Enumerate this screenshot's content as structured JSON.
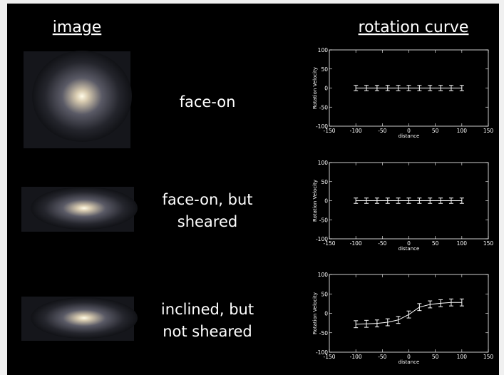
{
  "headers": {
    "image": "image",
    "curve": "rotation curve"
  },
  "rows": [
    {
      "label": [
        "face-on"
      ]
    },
    {
      "label": [
        "face-on, but",
        "sheared"
      ]
    },
    {
      "label": [
        "inclined, but",
        "not sheared"
      ]
    }
  ],
  "chart_data": [
    {
      "type": "line",
      "xlabel": "distance",
      "ylabel": "Rotation Velocity",
      "x": [
        -100,
        -80,
        -60,
        -40,
        -20,
        0,
        20,
        40,
        60,
        80,
        100
      ],
      "values": [
        0,
        0,
        0,
        0,
        0,
        0,
        0,
        0,
        0,
        0,
        0
      ],
      "errors": [
        7,
        7,
        7,
        7,
        7,
        7,
        7,
        7,
        7,
        7,
        7
      ],
      "xlim": [
        -150,
        150
      ],
      "xticks": [
        -150,
        -100,
        -50,
        0,
        50,
        100,
        150
      ],
      "ylim": [
        -100,
        100
      ],
      "yticks": [
        -100,
        -50,
        0,
        50,
        100
      ],
      "color": "#ffffff"
    },
    {
      "type": "line",
      "xlabel": "distance",
      "ylabel": "Rotation Velocity",
      "x": [
        -100,
        -80,
        -60,
        -40,
        -20,
        0,
        20,
        40,
        60,
        80,
        100
      ],
      "values": [
        0,
        0,
        0,
        0,
        0,
        0,
        0,
        0,
        0,
        0,
        0
      ],
      "errors": [
        7,
        7,
        7,
        7,
        7,
        7,
        7,
        7,
        7,
        7,
        7
      ],
      "xlim": [
        -150,
        150
      ],
      "xticks": [
        -150,
        -100,
        -50,
        0,
        50,
        100,
        150
      ],
      "ylim": [
        -100,
        100
      ],
      "yticks": [
        -100,
        -50,
        0,
        50,
        100
      ],
      "color": "#ffffff"
    },
    {
      "type": "line",
      "xlabel": "distance",
      "ylabel": "Rotation Velocity",
      "x": [
        -100,
        -80,
        -60,
        -40,
        -20,
        0,
        20,
        40,
        60,
        80,
        100
      ],
      "values": [
        -28,
        -27,
        -26,
        -23,
        -17,
        -3,
        16,
        23,
        26,
        28,
        28
      ],
      "errors": [
        9,
        9,
        9,
        9,
        9,
        9,
        9,
        9,
        9,
        9,
        9
      ],
      "xlim": [
        -150,
        150
      ],
      "xticks": [
        -150,
        -100,
        -50,
        0,
        50,
        100,
        150
      ],
      "ylim": [
        -100,
        100
      ],
      "yticks": [
        -100,
        -50,
        0,
        50,
        100
      ],
      "color": "#ffffff"
    }
  ]
}
